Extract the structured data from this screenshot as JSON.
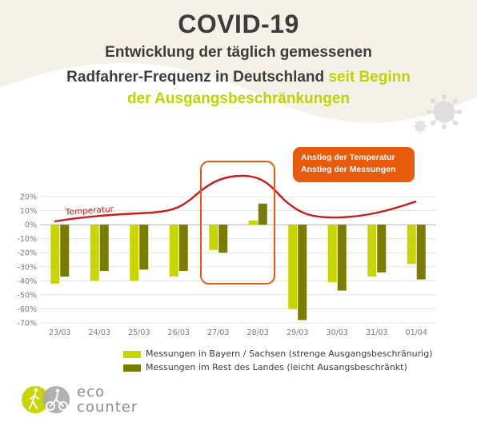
{
  "header": {
    "title": "COVID-19",
    "subtitle_line1": "Entwicklung der täglich gemessenen",
    "subtitle_line2_main": "Radfahrer-Frequenz in Deutschland",
    "subtitle_line2_highlight": "seit Beginn",
    "subtitle_line3_highlight": "der Ausgangsbeschränkungen"
  },
  "callout": {
    "line1": "Anstieg der Temperatur",
    "line2": "Anstieg der Messungen"
  },
  "logo": {
    "line1": "eco",
    "line2": "counter",
    "icon": "pedestrian-cyclist-icon"
  },
  "colors": {
    "series_bayern": "#c8d600",
    "series_rest": "#7a7c00",
    "temperature": "#cc1a1a",
    "highlight_box": "#e95b0c",
    "axis_text": "#7a7a7a",
    "header_blob": "#f6f1e8"
  },
  "chart_data": {
    "type": "bar",
    "categories": [
      "23/03",
      "24/03",
      "25/03",
      "26/03",
      "27/03",
      "28/03",
      "29/03",
      "30/03",
      "31/03",
      "01/04"
    ],
    "series": [
      {
        "name": "Messungen in Bayern / Sachsen (strenge Ausgangsbeschränurig)",
        "values": [
          -42,
          -40,
          -40,
          -37,
          -18,
          3,
          -60,
          -41,
          -37,
          -28
        ]
      },
      {
        "name": "Messungen im Rest des Landes (leicht Ausangsbeschränkt)",
        "values": [
          -37,
          -33,
          -32,
          -33,
          -20,
          15,
          -68,
          -47,
          -34,
          -39
        ]
      }
    ],
    "temperature_line": {
      "label": "Temperatur"
    },
    "ylim": [
      -70,
      20
    ],
    "yticks": [
      20,
      10,
      0,
      -10,
      -20,
      -30,
      -40,
      -50,
      -60,
      -70
    ],
    "ytick_labels": [
      "20%",
      "10%",
      "0%",
      "-10%",
      "-20%",
      "-30%",
      "-40%",
      "-50%",
      "-60%",
      "-70%"
    ],
    "highlighted_categories": [
      "27/03",
      "28/03"
    ],
    "legend_position": "bottom"
  }
}
